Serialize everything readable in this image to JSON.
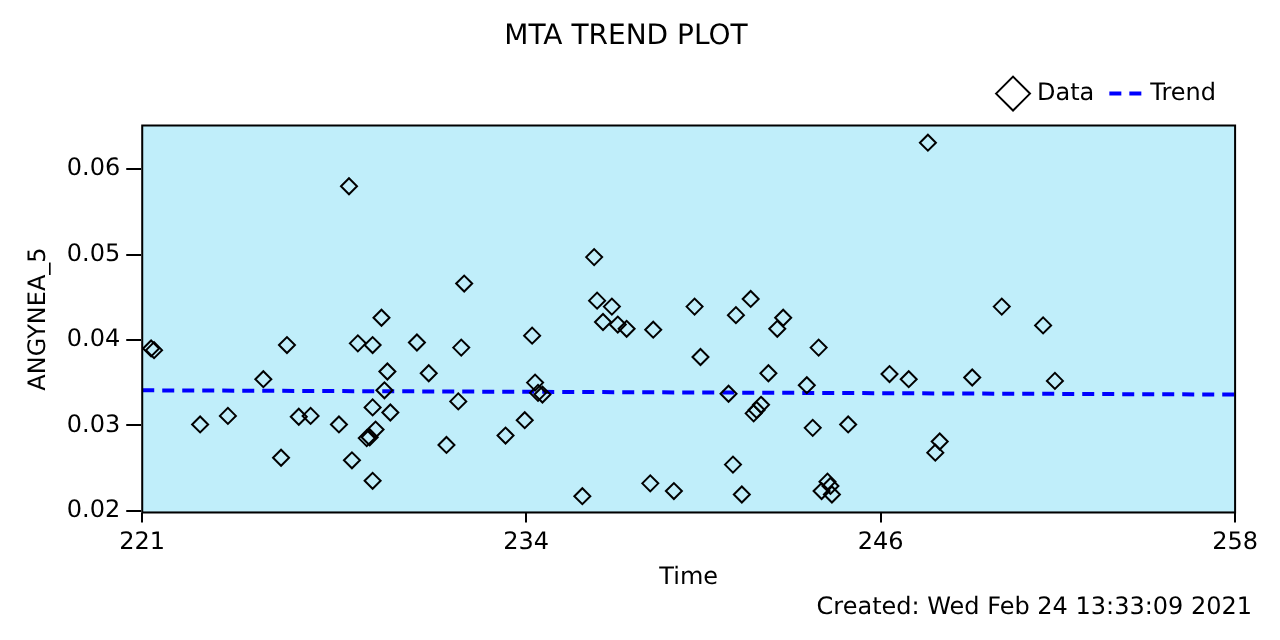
{
  "chart_data": {
    "type": "scatter",
    "title": "MTA TREND PLOT",
    "xlabel": "Time",
    "ylabel": "ANGYNEA_5",
    "annotations": [
      "Created: Wed Feb 24 13:33:09 2021"
    ],
    "xlim": [
      221,
      258
    ],
    "xticks": [
      221,
      234,
      246,
      258
    ],
    "ylim": [
      0.0198,
      0.0651
    ],
    "yticks": [
      0.02,
      0.03,
      0.04,
      0.05,
      0.06
    ],
    "grid": false,
    "legend": "top right",
    "series": [
      {
        "name": "Data",
        "color": "#000000",
        "marker": "diamond",
        "x": [
          221.3,
          221.4,
          222.96,
          223.9,
          225.1,
          225.7,
          225.9,
          226.3,
          226.7,
          227.66,
          228.0,
          228.1,
          228.3,
          228.6,
          228.7,
          228.8,
          228.8,
          228.8,
          228.9,
          229.1,
          229.2,
          229.3,
          229.4,
          230.3,
          230.7,
          231.3,
          231.7,
          231.8,
          231.9,
          233.3,
          233.95,
          234.2,
          234.3,
          234.4,
          234.55,
          235.9,
          236.3,
          236.4,
          236.6,
          236.9,
          237.1,
          237.4,
          238.3,
          238.2,
          239.0,
          239.7,
          239.9,
          240.85,
          241.0,
          241.1,
          241.3,
          241.6,
          241.7,
          241.8,
          241.95,
          242.2,
          242.5,
          242.7,
          243.5,
          243.7,
          243.9,
          244.0,
          244.2,
          244.3,
          244.35,
          244.9,
          246.3,
          246.95,
          247.6,
          247.85,
          248.0,
          249.1,
          250.1,
          251.5,
          251.9
        ],
        "values": [
          0.039,
          0.0388,
          0.0301,
          0.0311,
          0.0354,
          0.0262,
          0.0394,
          0.031,
          0.0311,
          0.0301,
          0.058,
          0.0259,
          0.0396,
          0.0285,
          0.0286,
          0.0235,
          0.0394,
          0.0321,
          0.0295,
          0.0426,
          0.0341,
          0.0363,
          0.0315,
          0.0397,
          0.0361,
          0.0277,
          0.0328,
          0.0391,
          0.0466,
          0.0288,
          0.0306,
          0.0405,
          0.035,
          0.0338,
          0.0336,
          0.0217,
          0.0497,
          0.0446,
          0.0421,
          0.0439,
          0.0418,
          0.0413,
          0.0412,
          0.0232,
          0.0223,
          0.0439,
          0.038,
          0.0337,
          0.0254,
          0.0429,
          0.0219,
          0.0448,
          0.0314,
          0.0318,
          0.0324,
          0.0361,
          0.0413,
          0.0426,
          0.0347,
          0.0297,
          0.0391,
          0.0223,
          0.0234,
          0.0229,
          0.0219,
          0.0301,
          0.036,
          0.0354,
          0.0631,
          0.0268,
          0.0281,
          0.0356,
          0.0439,
          0.0417,
          0.0352
        ]
      },
      {
        "name": "Trend",
        "type": "line",
        "color": "#0000ff",
        "marker": "none",
        "line_style": "dashed",
        "x": [
          221,
          258
        ],
        "values": [
          0.0341,
          0.0336
        ]
      }
    ]
  }
}
